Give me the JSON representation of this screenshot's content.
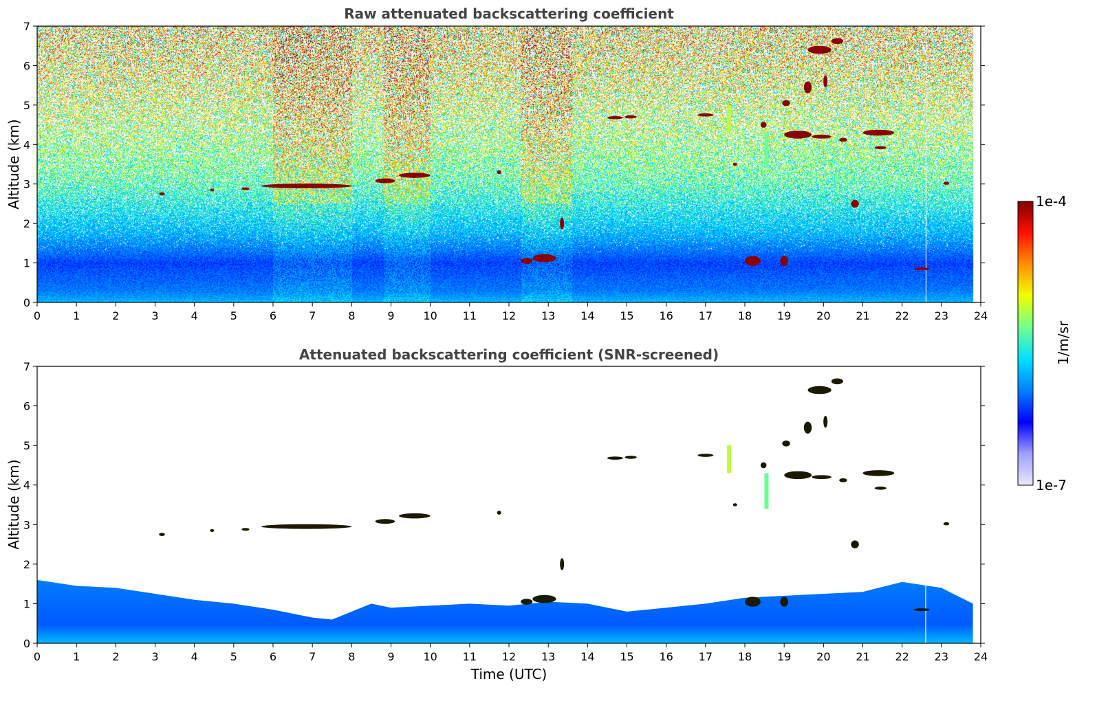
{
  "chart_data": [
    {
      "type": "heatmap",
      "title": "Raw attenuated backscattering coefficient",
      "xlabel": "",
      "ylabel": "Altitude (km)",
      "xlim": [
        0,
        24
      ],
      "ylim": [
        0,
        7
      ],
      "xticks": [
        "0",
        "1",
        "2",
        "3",
        "4",
        "5",
        "6",
        "7",
        "8",
        "9",
        "10",
        "11",
        "12",
        "13",
        "14",
        "15",
        "16",
        "17",
        "18",
        "19",
        "20",
        "21",
        "22",
        "23",
        "24"
      ],
      "yticks": [
        "0",
        "1",
        "2",
        "3",
        "4",
        "5",
        "6",
        "7"
      ],
      "data_extent_hours": [
        0,
        23.8
      ],
      "gap_time_utc": 22.6,
      "background_profile": [
        {
          "alt_km": 0.0,
          "level": 0.4
        },
        {
          "alt_km": 0.3,
          "level": 0.33
        },
        {
          "alt_km": 1.0,
          "level": 0.28
        },
        {
          "alt_km": 1.8,
          "level": 0.4
        },
        {
          "alt_km": 3.0,
          "level": 0.52
        },
        {
          "alt_km": 4.5,
          "level": 0.6
        },
        {
          "alt_km": 6.0,
          "level": 0.66
        },
        {
          "alt_km": 7.0,
          "level": 0.68
        }
      ],
      "high_noise_periods_utc": [
        [
          6.0,
          8.0
        ],
        [
          8.8,
          10.0
        ],
        [
          12.3,
          13.6
        ]
      ],
      "features": [
        {
          "t0": 3.1,
          "t1": 3.25,
          "alt_km": 2.75,
          "thickness_km": 0.08
        },
        {
          "t0": 4.4,
          "t1": 4.5,
          "alt_km": 2.85,
          "thickness_km": 0.05
        },
        {
          "t0": 5.2,
          "t1": 5.4,
          "alt_km": 2.88,
          "thickness_km": 0.05
        },
        {
          "t0": 5.7,
          "t1": 8.0,
          "alt_km": 2.95,
          "thickness_km": 0.12
        },
        {
          "t0": 8.6,
          "t1": 9.1,
          "alt_km": 3.08,
          "thickness_km": 0.12
        },
        {
          "t0": 9.2,
          "t1": 10.0,
          "alt_km": 3.22,
          "thickness_km": 0.13
        },
        {
          "t0": 11.7,
          "t1": 11.8,
          "alt_km": 3.3,
          "thickness_km": 0.1
        },
        {
          "t0": 12.3,
          "t1": 12.6,
          "alt_km": 1.05,
          "thickness_km": 0.15
        },
        {
          "t0": 12.6,
          "t1": 13.2,
          "alt_km": 1.12,
          "thickness_km": 0.2
        },
        {
          "t0": 13.3,
          "t1": 13.4,
          "alt_km": 2.0,
          "thickness_km": 0.3
        },
        {
          "t0": 14.5,
          "t1": 14.9,
          "alt_km": 4.68,
          "thickness_km": 0.08
        },
        {
          "t0": 14.95,
          "t1": 15.25,
          "alt_km": 4.7,
          "thickness_km": 0.08
        },
        {
          "t0": 16.8,
          "t1": 17.2,
          "alt_km": 4.75,
          "thickness_km": 0.08
        },
        {
          "t0": 17.7,
          "t1": 17.8,
          "alt_km": 3.5,
          "thickness_km": 0.08
        },
        {
          "t0": 18.0,
          "t1": 18.4,
          "alt_km": 1.05,
          "thickness_km": 0.25
        },
        {
          "t0": 18.4,
          "t1": 18.55,
          "alt_km": 4.5,
          "thickness_km": 0.15
        },
        {
          "t0": 18.9,
          "t1": 19.1,
          "alt_km": 1.05,
          "thickness_km": 0.25
        },
        {
          "t0": 18.95,
          "t1": 19.15,
          "alt_km": 5.05,
          "thickness_km": 0.15
        },
        {
          "t0": 19.0,
          "t1": 19.7,
          "alt_km": 4.25,
          "thickness_km": 0.2
        },
        {
          "t0": 19.7,
          "t1": 20.2,
          "alt_km": 4.2,
          "thickness_km": 0.1
        },
        {
          "t0": 19.5,
          "t1": 19.7,
          "alt_km": 5.45,
          "thickness_km": 0.3
        },
        {
          "t0": 20.0,
          "t1": 20.1,
          "alt_km": 5.6,
          "thickness_km": 0.3
        },
        {
          "t0": 19.6,
          "t1": 20.2,
          "alt_km": 6.4,
          "thickness_km": 0.2
        },
        {
          "t0": 20.2,
          "t1": 20.5,
          "alt_km": 6.62,
          "thickness_km": 0.15
        },
        {
          "t0": 20.4,
          "t1": 20.6,
          "alt_km": 4.12,
          "thickness_km": 0.1
        },
        {
          "t0": 20.7,
          "t1": 20.9,
          "alt_km": 2.5,
          "thickness_km": 0.2
        },
        {
          "t0": 21.0,
          "t1": 21.8,
          "alt_km": 4.3,
          "thickness_km": 0.15
        },
        {
          "t0": 21.3,
          "t1": 21.6,
          "alt_km": 3.92,
          "thickness_km": 0.08
        },
        {
          "t0": 22.3,
          "t1": 22.7,
          "alt_km": 0.85,
          "thickness_km": 0.06
        },
        {
          "t0": 23.05,
          "t1": 23.2,
          "alt_km": 3.02,
          "thickness_km": 0.08
        }
      ],
      "virga": [
        {
          "t": 17.6,
          "alt0_km": 4.3,
          "alt1_km": 5.0,
          "level": 0.62
        },
        {
          "t": 18.55,
          "alt0_km": 3.4,
          "alt1_km": 4.3,
          "level": 0.55
        }
      ]
    },
    {
      "type": "heatmap",
      "title": "Attenuated backscattering coefficient (SNR-screened)",
      "xlabel": "Time (UTC)",
      "ylabel": "Altitude (km)",
      "xlim": [
        0,
        24
      ],
      "ylim": [
        0,
        7
      ],
      "xticks": [
        "0",
        "1",
        "2",
        "3",
        "4",
        "5",
        "6",
        "7",
        "8",
        "9",
        "10",
        "11",
        "12",
        "13",
        "14",
        "15",
        "16",
        "17",
        "18",
        "19",
        "20",
        "21",
        "22",
        "23",
        "24"
      ],
      "yticks": [
        "0",
        "1",
        "2",
        "3",
        "4",
        "5",
        "6",
        "7"
      ],
      "data_extent_hours": [
        0,
        23.8
      ],
      "gap_time_utc": 22.6,
      "boundary_layer_top_km": [
        {
          "t": 0,
          "alt_km": 1.6
        },
        {
          "t": 1,
          "alt_km": 1.45
        },
        {
          "t": 2,
          "alt_km": 1.4
        },
        {
          "t": 3,
          "alt_km": 1.25
        },
        {
          "t": 4,
          "alt_km": 1.1
        },
        {
          "t": 5,
          "alt_km": 1.0
        },
        {
          "t": 6,
          "alt_km": 0.85
        },
        {
          "t": 7,
          "alt_km": 0.65
        },
        {
          "t": 7.5,
          "alt_km": 0.6
        },
        {
          "t": 8,
          "alt_km": 0.8
        },
        {
          "t": 8.5,
          "alt_km": 1.0
        },
        {
          "t": 9,
          "alt_km": 0.9
        },
        {
          "t": 10,
          "alt_km": 0.95
        },
        {
          "t": 11,
          "alt_km": 1.0
        },
        {
          "t": 12,
          "alt_km": 0.95
        },
        {
          "t": 13,
          "alt_km": 1.05
        },
        {
          "t": 14,
          "alt_km": 1.0
        },
        {
          "t": 15,
          "alt_km": 0.8
        },
        {
          "t": 16,
          "alt_km": 0.9
        },
        {
          "t": 17,
          "alt_km": 1.0
        },
        {
          "t": 18,
          "alt_km": 1.15
        },
        {
          "t": 19,
          "alt_km": 1.2
        },
        {
          "t": 20,
          "alt_km": 1.25
        },
        {
          "t": 21,
          "alt_km": 1.3
        },
        {
          "t": 22,
          "alt_km": 1.55
        },
        {
          "t": 23,
          "alt_km": 1.4
        },
        {
          "t": 23.8,
          "alt_km": 1.0
        }
      ]
    }
  ],
  "colorbar": {
    "label": "1/m/sr",
    "max_label": "1e-4",
    "min_label": "1e-7",
    "colors": [
      "#e8e8ff",
      "#a0a0ff",
      "#0000ff",
      "#0080ff",
      "#00e0ff",
      "#70ff90",
      "#f0ff00",
      "#ff9000",
      "#ff1000",
      "#800000"
    ]
  }
}
